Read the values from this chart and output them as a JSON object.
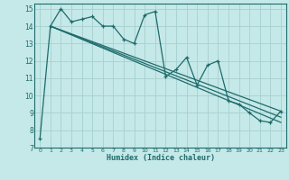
{
  "xlabel": "Humidex (Indice chaleur)",
  "ylabel": "",
  "bg_color": "#c5e8e8",
  "grid_color": "#a8d0d0",
  "line_color": "#1e6b6b",
  "xlim": [
    -0.5,
    23.5
  ],
  "ylim": [
    7,
    15.3
  ],
  "xticks": [
    0,
    1,
    2,
    3,
    4,
    5,
    6,
    7,
    8,
    9,
    10,
    11,
    12,
    13,
    14,
    15,
    16,
    17,
    18,
    19,
    20,
    21,
    22,
    23
  ],
  "yticks": [
    7,
    8,
    9,
    10,
    11,
    12,
    13,
    14,
    15
  ],
  "series1_x": [
    0,
    1,
    2,
    3,
    4,
    5,
    6,
    7,
    8,
    9,
    10,
    11,
    12,
    13,
    14,
    15,
    16,
    17,
    18,
    19,
    20,
    21,
    22,
    23
  ],
  "series1_y": [
    7.5,
    14.0,
    15.0,
    14.25,
    14.4,
    14.55,
    14.0,
    14.0,
    13.25,
    13.0,
    14.65,
    14.85,
    11.1,
    11.5,
    12.2,
    10.6,
    11.75,
    12.0,
    9.7,
    9.5,
    9.0,
    8.55,
    8.45,
    9.1
  ],
  "trend_lines": [
    {
      "x": [
        1,
        23
      ],
      "y": [
        14.0,
        8.45
      ]
    },
    {
      "x": [
        1,
        23
      ],
      "y": [
        14.0,
        9.1
      ]
    },
    {
      "x": [
        1,
        23
      ],
      "y": [
        14.0,
        8.75
      ]
    }
  ]
}
